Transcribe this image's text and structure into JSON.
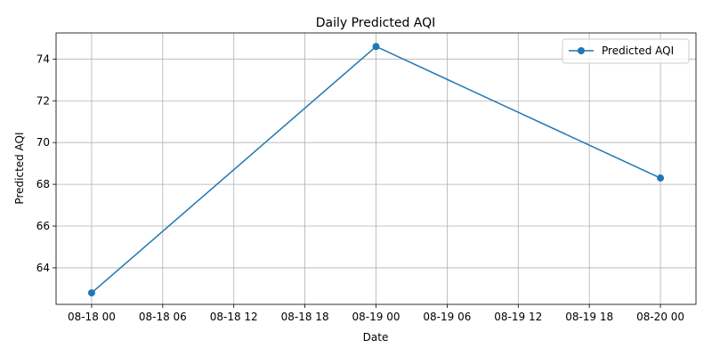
{
  "chart_data": {
    "type": "line",
    "title": "Daily Predicted AQI",
    "xlabel": "Date",
    "ylabel": "Predicted AQI",
    "x_tick_labels": [
      "08-18 00",
      "08-18 06",
      "08-18 12",
      "08-18 18",
      "08-19 00",
      "08-19 06",
      "08-19 12",
      "08-19 18",
      "08-20 00"
    ],
    "y_ticks": [
      64,
      66,
      68,
      70,
      72,
      74
    ],
    "xlim": [
      "2024-08-17 21:00",
      "2024-08-20 03:00"
    ],
    "ylim": [
      62.25,
      75.25
    ],
    "grid": true,
    "legend_position": "upper right",
    "series": [
      {
        "name": "Predicted AQI",
        "color": "#1f77b4",
        "marker": "circle",
        "points": [
          {
            "x": "2024-08-18 00:00",
            "y": 62.8
          },
          {
            "x": "2024-08-19 00:00",
            "y": 74.6
          },
          {
            "x": "2024-08-20 00:00",
            "y": 68.3
          }
        ]
      }
    ]
  }
}
